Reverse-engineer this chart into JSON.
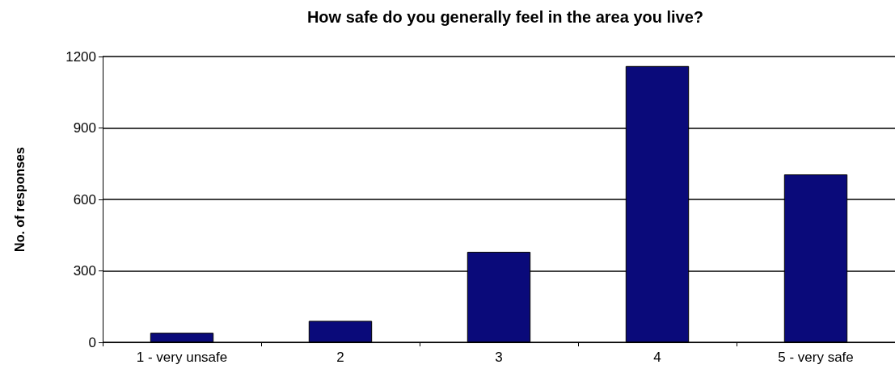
{
  "chart_data": {
    "type": "bar",
    "title": "How safe do you generally feel in the area you live?",
    "ylabel": "No. of responses",
    "categories": [
      "1 - very unsafe",
      "2",
      "3",
      "4",
      "5 - very safe"
    ],
    "values": [
      40,
      90,
      380,
      1160,
      705
    ],
    "color": "#0a0a7a",
    "ylim": [
      0,
      1200
    ],
    "yticks": [
      0,
      300,
      600,
      900,
      1200
    ],
    "grid": "y"
  }
}
